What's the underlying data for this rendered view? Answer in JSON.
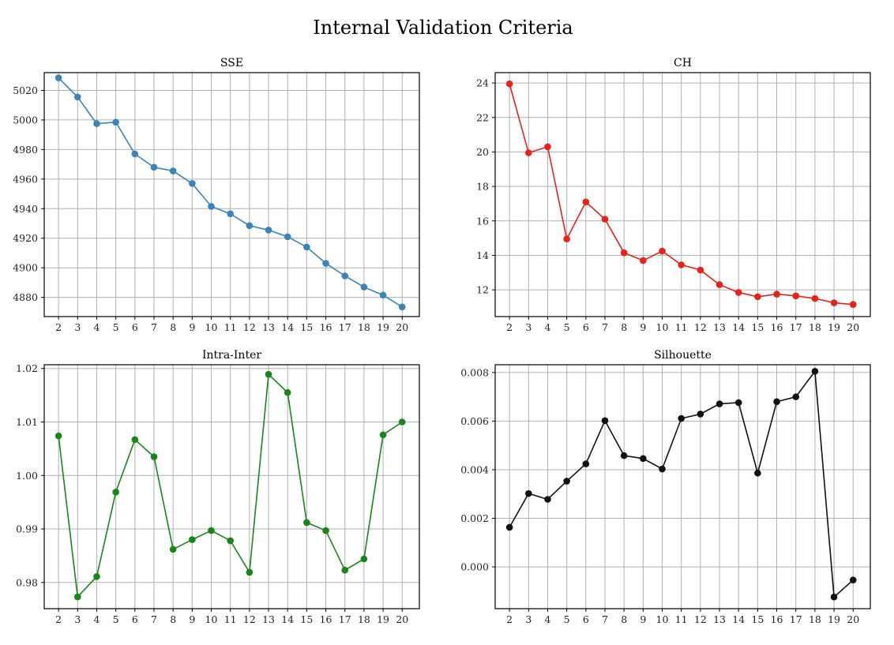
{
  "figure": {
    "title": "Internal Validation Criteria"
  },
  "chart_data": [
    {
      "type": "line",
      "title": "SSE",
      "xlabel": "",
      "ylabel": "",
      "grid": true,
      "color": "#3a84b9",
      "x": [
        2,
        3,
        4,
        5,
        6,
        7,
        8,
        9,
        10,
        11,
        12,
        13,
        14,
        15,
        16,
        17,
        18,
        19,
        20
      ],
      "values": [
        5028.5,
        5015.5,
        4997.5,
        4998.5,
        4977,
        4968,
        4965.5,
        4957,
        4941.5,
        4936.5,
        4928.5,
        4925.5,
        4921,
        4914,
        4903,
        4894.5,
        4887,
        4881.5,
        4873.5
      ],
      "ylim": [
        4867,
        5032
      ],
      "yticks": [
        4880,
        4900,
        4920,
        4940,
        4960,
        4980,
        5000,
        5020
      ],
      "ytick_labels": [
        "4880",
        "4900",
        "4920",
        "4940",
        "4960",
        "4980",
        "5000",
        "5020"
      ],
      "xlim": [
        1.25,
        20.9
      ],
      "xtick_labels": [
        "2",
        "3",
        "4",
        "5",
        "6",
        "7",
        "8",
        "9",
        "10",
        "11",
        "12",
        "13",
        "14",
        "15",
        "16",
        "17",
        "18",
        "19",
        "20"
      ]
    },
    {
      "type": "line",
      "title": "CH",
      "xlabel": "",
      "ylabel": "",
      "grid": true,
      "color": "#e8211a",
      "x": [
        2,
        3,
        4,
        5,
        6,
        7,
        8,
        9,
        10,
        11,
        12,
        13,
        14,
        15,
        16,
        17,
        18,
        19,
        20
      ],
      "values": [
        23.95,
        19.95,
        20.3,
        14.95,
        17.1,
        16.1,
        14.15,
        13.7,
        14.25,
        13.45,
        13.15,
        12.3,
        11.85,
        11.6,
        11.75,
        11.65,
        11.5,
        11.25,
        11.15
      ],
      "ylim": [
        10.45,
        24.6
      ],
      "yticks": [
        12,
        14,
        16,
        18,
        20,
        22,
        24
      ],
      "ytick_labels": [
        "12",
        "14",
        "16",
        "18",
        "20",
        "22",
        "24"
      ],
      "xlim": [
        1.25,
        20.9
      ],
      "xtick_labels": [
        "2",
        "3",
        "4",
        "5",
        "6",
        "7",
        "8",
        "9",
        "10",
        "11",
        "12",
        "13",
        "14",
        "15",
        "16",
        "17",
        "18",
        "19",
        "20"
      ]
    },
    {
      "type": "line",
      "title": "Intra-Inter",
      "xlabel": "",
      "ylabel": "",
      "grid": true,
      "color": "#17871a",
      "x": [
        2,
        3,
        4,
        5,
        6,
        7,
        8,
        9,
        10,
        11,
        12,
        13,
        14,
        15,
        16,
        17,
        18,
        19,
        20
      ],
      "values": [
        1.0074,
        0.9773,
        0.9811,
        0.9969,
        1.0067,
        1.0035,
        0.9862,
        0.988,
        0.9897,
        0.9878,
        0.9819,
        1.0189,
        1.0155,
        0.9912,
        0.9897,
        0.9823,
        0.9844,
        1.0076,
        1.01
      ],
      "ylim": [
        0.9751,
        1.0207
      ],
      "yticks": [
        0.98,
        0.99,
        1.0,
        1.01,
        1.02
      ],
      "ytick_labels": [
        "0.98",
        "0.99",
        "1.00",
        "1.01",
        "1.02"
      ],
      "xlim": [
        1.25,
        20.9
      ],
      "xtick_labels": [
        "2",
        "3",
        "4",
        "5",
        "6",
        "7",
        "8",
        "9",
        "10",
        "11",
        "12",
        "13",
        "14",
        "15",
        "16",
        "17",
        "18",
        "19",
        "20"
      ]
    },
    {
      "type": "line",
      "title": "Silhouette",
      "xlabel": "",
      "ylabel": "",
      "grid": true,
      "color": "#111111",
      "x": [
        2,
        3,
        4,
        5,
        6,
        7,
        8,
        9,
        10,
        11,
        12,
        13,
        14,
        15,
        16,
        17,
        18,
        19,
        20
      ],
      "values": [
        0.00163,
        0.00302,
        0.00278,
        0.00353,
        0.00424,
        0.00602,
        0.00458,
        0.00446,
        0.00403,
        0.00611,
        0.00629,
        0.00671,
        0.00676,
        0.00386,
        0.0068,
        0.007,
        0.00805,
        -0.00124,
        -0.00054
      ],
      "ylim": [
        -0.00172,
        0.00832
      ],
      "yticks": [
        0.0,
        0.002,
        0.004,
        0.006,
        0.008
      ],
      "ytick_labels": [
        "0.000",
        "0.002",
        "0.004",
        "0.006",
        "0.008"
      ],
      "xlim": [
        1.25,
        20.9
      ],
      "xtick_labels": [
        "2",
        "3",
        "4",
        "5",
        "6",
        "7",
        "8",
        "9",
        "10",
        "11",
        "12",
        "13",
        "14",
        "15",
        "16",
        "17",
        "18",
        "19",
        "20"
      ]
    }
  ]
}
